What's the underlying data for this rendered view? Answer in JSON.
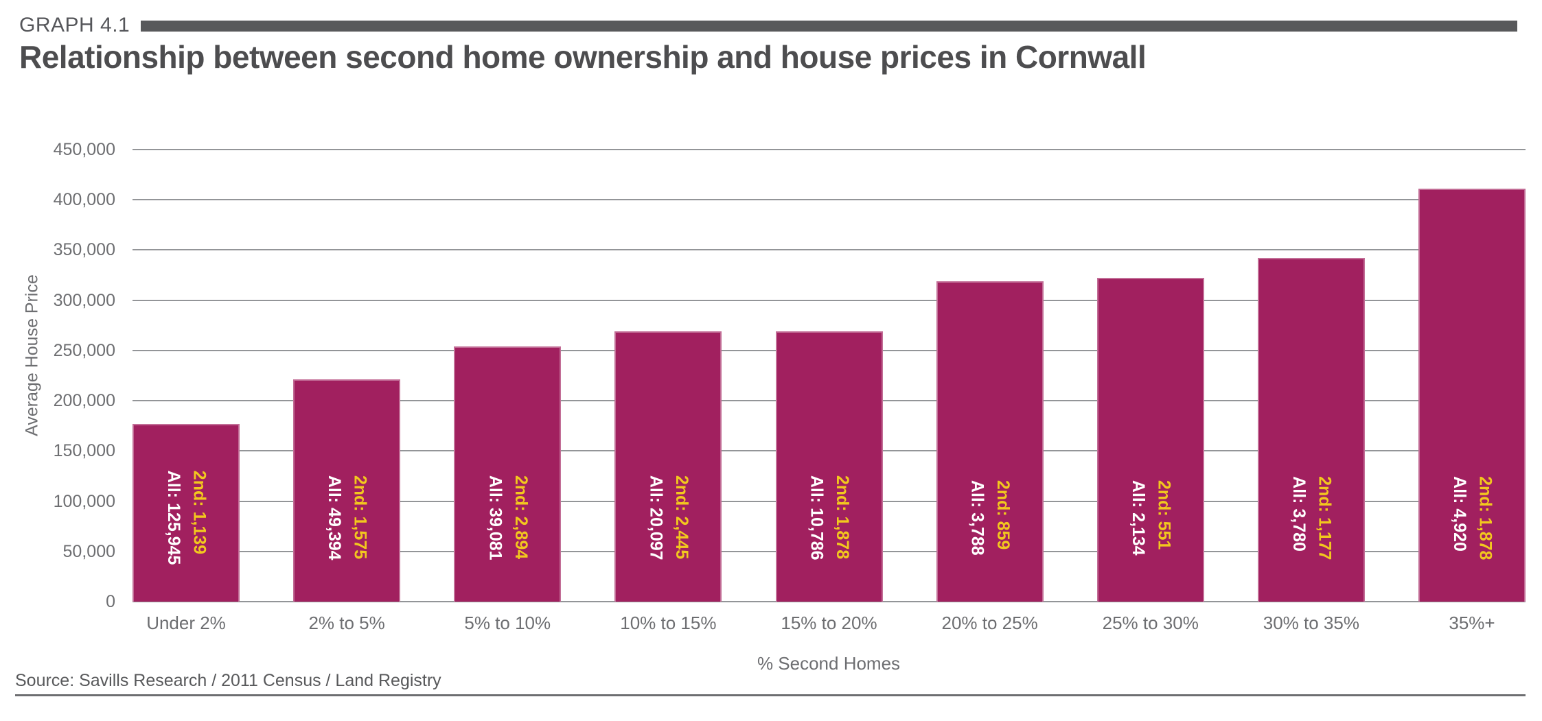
{
  "header": {
    "graph_label": "GRAPH 4.1",
    "title": "Relationship between second home ownership and house prices in Cornwall"
  },
  "source": "Source: Savills Research / 2011 Census / Land Registry",
  "colors": {
    "bar": "#A1205F",
    "second_home_label": "#F2C81E",
    "all_label": "#FFFFFF",
    "header_bar": "#58595B",
    "gridline": "#939598",
    "axis_text": "#6D6E71",
    "title_text": "#4D4D4F"
  },
  "chart_data": {
    "type": "bar",
    "title": "Relationship between second home ownership and house prices in Cornwall",
    "xlabel": "% Second Homes",
    "ylabel": "Average House Price",
    "ylim": [
      0,
      450000
    ],
    "ytick_interval": 50000,
    "grid": true,
    "legend": "none",
    "yticks": [
      "450,000",
      "400,000",
      "350,000",
      "300,000",
      "250,000",
      "200,000",
      "150,000",
      "100,000",
      "50,000",
      "0"
    ],
    "categories": [
      "Under 2%",
      "2% to 5%",
      "5% to 10%",
      "10% to 15%",
      "15% to 20%",
      "20% to 25%",
      "25% to 30%",
      "30% to 35%",
      "35%+"
    ],
    "series": [
      {
        "name": "Average House Price",
        "values": [
          177000,
          221000,
          254000,
          269000,
          269000,
          319000,
          322000,
          342000,
          411000
        ]
      }
    ],
    "bar_annotations": [
      {
        "second": "2nd: 1,139",
        "all": "All: 125,945"
      },
      {
        "second": "2nd: 1,575",
        "all": "All: 49,394"
      },
      {
        "second": "2nd: 2,894",
        "all": "All: 39,081"
      },
      {
        "second": "2nd: 2,445",
        "all": "All: 20,097"
      },
      {
        "second": "2nd: 1,878",
        "all": "All: 10,786"
      },
      {
        "second": "2nd: 859",
        "all": "All: 3,788"
      },
      {
        "second": "2nd: 551",
        "all": "All: 2,134"
      },
      {
        "second": "2nd: 1,177",
        "all": "All: 3,780"
      },
      {
        "second": "2nd: 1,878",
        "all": "All: 4,920"
      }
    ]
  }
}
